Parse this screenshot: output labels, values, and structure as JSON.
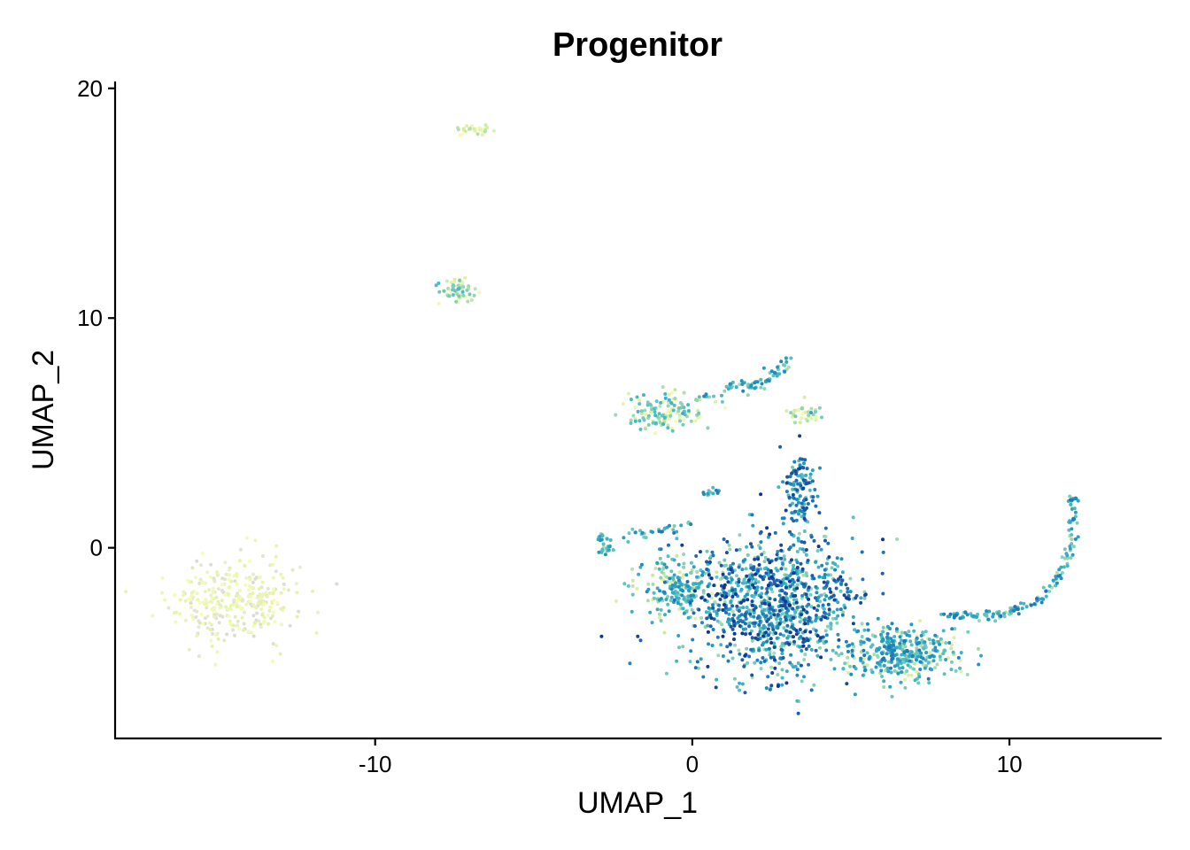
{
  "chart_data": {
    "type": "scatter",
    "title": "Progenitor",
    "xlabel": "UMAP_1",
    "ylabel": "UMAP_2",
    "xlim": [
      -18.2,
      14.8
    ],
    "ylim": [
      -8.3,
      20.3
    ],
    "x_ticks": [
      -10,
      0,
      10
    ],
    "x_tick_labels": [
      "-10",
      "0",
      "10"
    ],
    "y_ticks": [
      0,
      10,
      20
    ],
    "y_tick_labels": [
      "0",
      "10",
      "20"
    ],
    "grid": false,
    "legend": "none",
    "color_scale": [
      "#d9d9d9",
      "#f7fcb9",
      "#d9f0a3",
      "#7fcdbb",
      "#41b6c4",
      "#1d91c0",
      "#225ea8",
      "#0c2c84"
    ],
    "clusters": [
      {
        "region": "left-island",
        "cx": -14.4,
        "cy": -2.3,
        "rx": 1.8,
        "ry": 1.7,
        "n": 320,
        "level_range": [
          0.0,
          0.25
        ]
      },
      {
        "region": "top-small",
        "cx": -6.9,
        "cy": 18.2,
        "rx": 0.5,
        "ry": 0.25,
        "n": 30,
        "level_range": [
          0.1,
          0.35
        ]
      },
      {
        "region": "upper-ring",
        "cx": -7.4,
        "cy": 11.3,
        "rx": 0.6,
        "ry": 0.45,
        "n": 60,
        "level_range": [
          0.1,
          0.55
        ]
      },
      {
        "region": "left-clump",
        "cx": -0.8,
        "cy": 5.9,
        "rx": 1.1,
        "ry": 0.8,
        "n": 140,
        "level_range": [
          0.15,
          0.6
        ]
      },
      {
        "region": "right-clump",
        "cx": 3.6,
        "cy": 5.8,
        "rx": 0.5,
        "ry": 0.35,
        "n": 40,
        "level_range": [
          0.15,
          0.45
        ]
      },
      {
        "region": "main-core",
        "cx": 2.6,
        "cy": -2.5,
        "rx": 2.4,
        "ry": 2.8,
        "n": 1050,
        "level_range": [
          0.35,
          0.98
        ]
      },
      {
        "region": "main-left",
        "cx": -0.4,
        "cy": -1.6,
        "rx": 1.2,
        "ry": 1.3,
        "n": 200,
        "level_range": [
          0.25,
          0.75
        ]
      },
      {
        "region": "lower-right",
        "cx": 6.6,
        "cy": -4.6,
        "rx": 1.6,
        "ry": 1.1,
        "n": 380,
        "level_range": [
          0.25,
          0.8
        ]
      },
      {
        "region": "upper-stem",
        "cx": 3.4,
        "cy": 2.6,
        "rx": 0.45,
        "ry": 1.6,
        "n": 120,
        "level_range": [
          0.45,
          0.95
        ]
      }
    ],
    "paths": [
      {
        "region": "top-strand",
        "points": [
          [
            0.2,
            6.6
          ],
          [
            1.3,
            7.0
          ],
          [
            2.1,
            7.1
          ],
          [
            2.6,
            7.6
          ],
          [
            3.1,
            8.3
          ]
        ],
        "n": 70,
        "spread": 0.12,
        "level_range": [
          0.35,
          0.75
        ]
      },
      {
        "region": "right-arc",
        "points": [
          [
            7.8,
            -2.9
          ],
          [
            9.4,
            -3.0
          ],
          [
            10.6,
            -2.6
          ],
          [
            11.4,
            -1.7
          ],
          [
            11.9,
            -0.3
          ],
          [
            12.0,
            1.2
          ],
          [
            12.0,
            2.3
          ]
        ],
        "n": 150,
        "spread": 0.1,
        "level_range": [
          0.35,
          0.8
        ]
      },
      {
        "region": "left-strand",
        "points": [
          [
            -2.9,
            0.6
          ],
          [
            -2.6,
            -0.1
          ],
          [
            -2.9,
            -0.2
          ]
        ],
        "n": 30,
        "spread": 0.08,
        "level_range": [
          0.3,
          0.7
        ]
      },
      {
        "region": "left-bridge",
        "points": [
          [
            -2.3,
            0.5
          ],
          [
            -1.4,
            0.6
          ],
          [
            -0.6,
            0.9
          ],
          [
            0.2,
            1.2
          ]
        ],
        "n": 30,
        "spread": 0.1,
        "level_range": [
          0.4,
          0.8
        ]
      },
      {
        "region": "mid-bridge",
        "points": [
          [
            0.3,
            2.3
          ],
          [
            0.8,
            2.5
          ]
        ],
        "n": 15,
        "spread": 0.08,
        "level_range": [
          0.4,
          0.8
        ]
      }
    ]
  }
}
